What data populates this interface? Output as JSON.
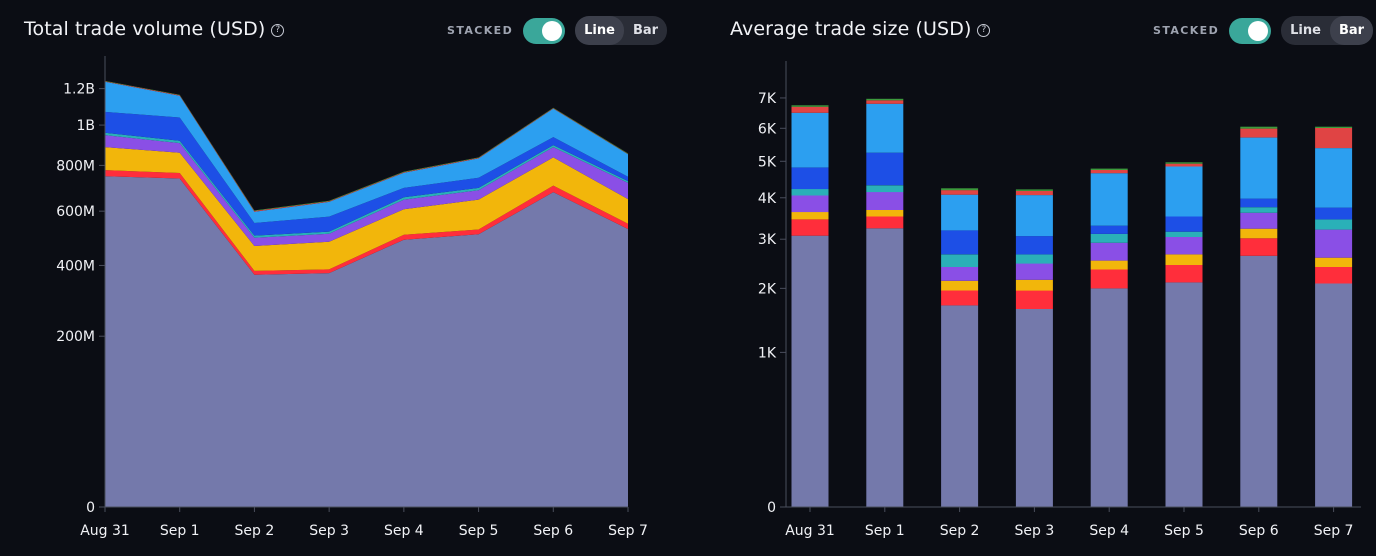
{
  "panels": {
    "left": {
      "title": "Total trade volume (USD)",
      "help": "?",
      "stacked_label": "STACKED",
      "line_label": "Line",
      "bar_label": "Bar",
      "active": "Line"
    },
    "right": {
      "title": "Average trade size (USD)",
      "help": "?",
      "stacked_label": "STACKED",
      "line_label": "Line",
      "bar_label": "Bar",
      "active": "Bar"
    }
  },
  "colors": {
    "background": "#0b0d14",
    "toggle_on": "#3aa79a",
    "series": [
      "#7479ab",
      "#ff2e3b",
      "#f2b60b",
      "#8a4fe6",
      "#2ab0b8",
      "#1d4fe6",
      "#2c9ff0",
      "#e04444",
      "#3c9a3c"
    ]
  },
  "chart_data": [
    {
      "type": "area",
      "stacked": true,
      "title": "Total trade volume (USD)",
      "xlabel": "",
      "ylabel": "",
      "scale": "sqrt",
      "categories": [
        "Aug 31",
        "Sep 1",
        "Sep 2",
        "Sep 3",
        "Sep 4",
        "Sep 5",
        "Sep 6",
        "Sep 7"
      ],
      "yticks": [
        {
          "value": 0,
          "label": "0"
        },
        {
          "value": 200000000,
          "label": "200M"
        },
        {
          "value": 400000000,
          "label": "400M"
        },
        {
          "value": 600000000,
          "label": "600M"
        },
        {
          "value": 800000000,
          "label": "800M"
        },
        {
          "value": 1000000000,
          "label": "1B"
        },
        {
          "value": 1200000000,
          "label": "1.2B"
        }
      ],
      "ylim": [
        0,
        1250000000
      ],
      "series": [
        {
          "values": [
            750000000,
            740000000,
            370000000,
            375000000,
            490000000,
            510000000,
            680000000,
            530000000
          ]
        },
        {
          "values": [
            28000000,
            25000000,
            12000000,
            12000000,
            18000000,
            18000000,
            28000000,
            20000000
          ]
        },
        {
          "values": [
            110000000,
            95000000,
            85000000,
            95000000,
            100000000,
            120000000,
            130000000,
            100000000
          ]
        },
        {
          "values": [
            60000000,
            48000000,
            30000000,
            30000000,
            40000000,
            40000000,
            50000000,
            70000000
          ]
        },
        {
          "values": [
            12000000,
            12000000,
            8000000,
            8000000,
            10000000,
            10000000,
            10000000,
            8000000
          ]
        },
        {
          "values": [
            110000000,
            120000000,
            48000000,
            58000000,
            40000000,
            45000000,
            40000000,
            20000000
          ]
        },
        {
          "values": [
            170000000,
            120000000,
            45000000,
            60000000,
            68000000,
            90000000,
            150000000,
            105000000
          ]
        },
        {
          "values": [
            3000000,
            3000000,
            3000000,
            3000000,
            3000000,
            3000000,
            3000000,
            2000000
          ]
        },
        {
          "values": [
            2000000,
            2000000,
            2000000,
            2000000,
            2000000,
            2000000,
            2000000,
            2000000
          ]
        }
      ]
    },
    {
      "type": "bar",
      "stacked": true,
      "title": "Average trade size (USD)",
      "xlabel": "",
      "ylabel": "",
      "scale": "sqrt",
      "categories": [
        "Aug 31",
        "Sep 1",
        "Sep 2",
        "Sep 3",
        "Sep 4",
        "Sep 5",
        "Sep 6",
        "Sep 7"
      ],
      "yticks": [
        {
          "value": 0,
          "label": "0"
        },
        {
          "value": 1000,
          "label": "1K"
        },
        {
          "value": 2000,
          "label": "2K"
        },
        {
          "value": 3000,
          "label": "3K"
        },
        {
          "value": 4000,
          "label": "4K"
        },
        {
          "value": 5000,
          "label": "5K"
        },
        {
          "value": 6000,
          "label": "6K"
        },
        {
          "value": 7000,
          "label": "7K"
        }
      ],
      "ylim": [
        0,
        7450
      ],
      "series": [
        {
          "values": [
            3080,
            3250,
            1700,
            1640,
            2000,
            2110,
            2640,
            2090
          ]
        },
        {
          "values": [
            380,
            280,
            260,
            320,
            360,
            340,
            380,
            320
          ]
        },
        {
          "values": [
            180,
            160,
            180,
            200,
            180,
            220,
            220,
            190
          ]
        },
        {
          "values": [
            420,
            460,
            270,
            320,
            380,
            380,
            380,
            620
          ]
        },
        {
          "values": [
            170,
            180,
            260,
            190,
            200,
            120,
            140,
            240
          ]
        },
        {
          "values": [
            590,
            920,
            530,
            400,
            190,
            360,
            220,
            290
          ]
        },
        {
          "values": [
            1680,
            1550,
            880,
            1000,
            1350,
            1320,
            1730,
            1640
          ]
        },
        {
          "values": [
            200,
            120,
            120,
            110,
            90,
            80,
            280,
            620
          ]
        },
        {
          "values": [
            50,
            50,
            50,
            40,
            40,
            40,
            60,
            40
          ]
        }
      ]
    }
  ]
}
